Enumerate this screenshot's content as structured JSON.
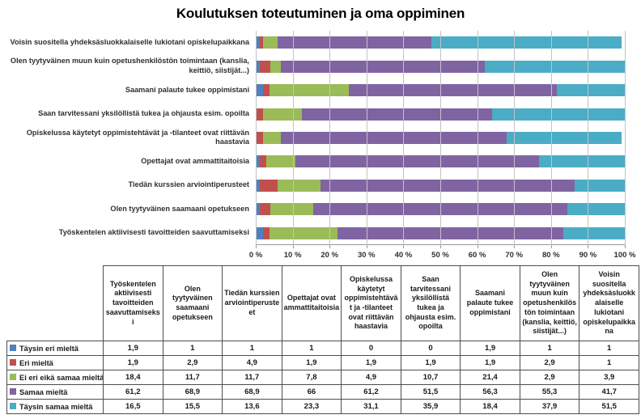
{
  "chart_data": {
    "type": "bar",
    "orientation": "horizontal",
    "stacked": true,
    "title": "Koulutuksen toteutuminen ja oma oppiminen",
    "xlim": [
      0,
      100
    ],
    "x_tick_labels": [
      "0 %",
      "10 %",
      "20 %",
      "30 %",
      "40 %",
      "50 %",
      "60 %",
      "70 %",
      "80 %",
      "90 %",
      "100 %"
    ],
    "grid": "vertical",
    "chart_row_order": "categories displayed bottom-to-top (first category at bottom bar)",
    "legend_position": "table rows below chart",
    "categories": [
      "Työskentelen aktiivisesti tavoitteiden saavuttamiseksi",
      "Olen tyytyväinen saamaani opetukseen",
      "Tiedän kurssien arviointiperusteet",
      "Opettajat ovat ammattitaitoisia",
      "Opiskelussa käytetyt oppimistehtävät ja -tilanteet ovat riittävän haastavia",
      "Saan tarvitessani yksilöllistä tukea ja ohjausta esim. opoilta",
      "Saamani palaute tukee oppimistani",
      "Olen tyytyväinen muun kuin opetushenkilöstön toimintaan (kanslia, keittiö, siistijät...)",
      "Voisin suositella yhdeksäsluokkalaiselle lukiotani opiskelupaikkana"
    ],
    "series": [
      {
        "name": "Täysin eri mieltä",
        "color": "#4F81BD",
        "values": [
          1.9,
          1,
          1,
          1,
          0,
          0,
          1.9,
          1,
          1
        ]
      },
      {
        "name": "Eri mieltä",
        "color": "#C0504D",
        "values": [
          1.9,
          2.9,
          4.9,
          1.9,
          1.9,
          1.9,
          1.9,
          2.9,
          1
        ]
      },
      {
        "name": "Ei eri eikä samaa mieltä",
        "color": "#9BBB59",
        "values": [
          18.4,
          11.7,
          11.7,
          7.8,
          4.9,
          10.7,
          21.4,
          2.9,
          3.9
        ]
      },
      {
        "name": "Samaa mieltä",
        "color": "#8064A2",
        "values": [
          61.2,
          68.9,
          68.9,
          66,
          61.2,
          51.5,
          56.3,
          55.3,
          41.7
        ]
      },
      {
        "name": "Täysin samaa mieltä",
        "color": "#4BACC6",
        "values": [
          16.5,
          15.5,
          13.6,
          23.3,
          31.1,
          35.9,
          18.4,
          37.9,
          51.5
        ]
      }
    ],
    "number_format": "decimal comma (fi-FI)"
  }
}
